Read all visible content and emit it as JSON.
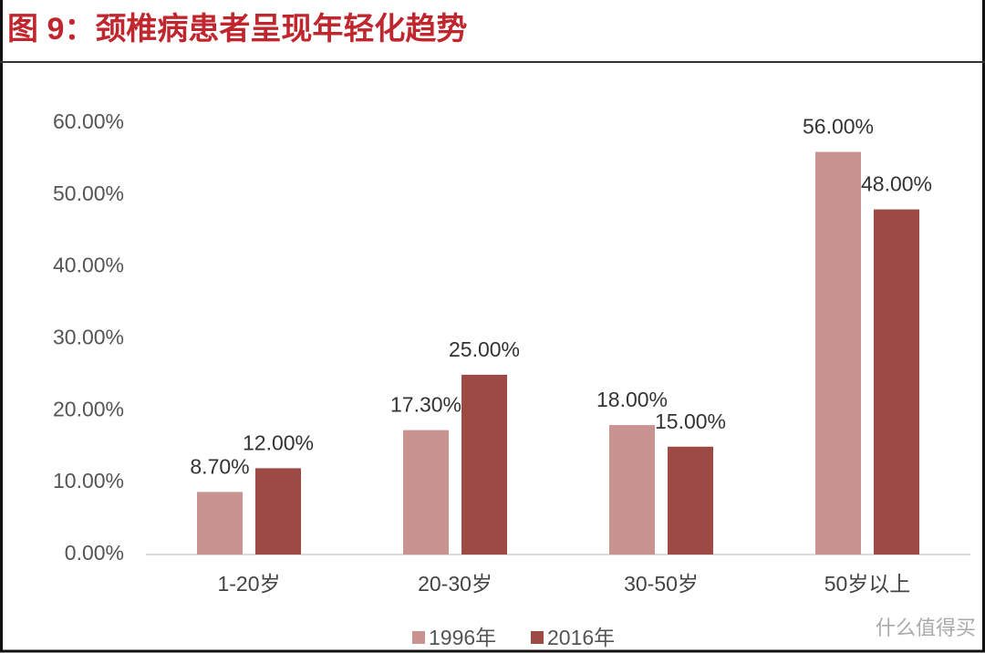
{
  "chart_data": {
    "type": "bar",
    "title": "图 9：颈椎病患者呈现年轻化趋势",
    "categories": [
      "1-20岁",
      "20-30岁",
      "30-50岁",
      "50岁以上"
    ],
    "series": [
      {
        "name": "1996年",
        "color": "#c9938f",
        "values": [
          8.7,
          17.3,
          18,
          56
        ],
        "value_labels": [
          "8.70%",
          "17.30%",
          "18.00%",
          "56.00%"
        ]
      },
      {
        "name": "2016年",
        "color": "#9e4a44",
        "values": [
          12,
          25,
          15,
          48
        ],
        "value_labels": [
          "12.00%",
          "25.00%",
          "15.00%",
          "48.00%"
        ]
      }
    ],
    "ylim": [
      0,
      60
    ],
    "yticks": [
      {
        "value": 0,
        "label": "0.00%"
      },
      {
        "value": 10,
        "label": "10.00%"
      },
      {
        "value": 20,
        "label": "20.00%"
      },
      {
        "value": 30,
        "label": "30.00%"
      },
      {
        "value": 40,
        "label": "40.00%"
      },
      {
        "value": 50,
        "label": "50.00%"
      },
      {
        "value": 60,
        "label": "60.00%"
      }
    ],
    "grid": false,
    "legend": "bottom",
    "watermark": "什么值得买"
  }
}
